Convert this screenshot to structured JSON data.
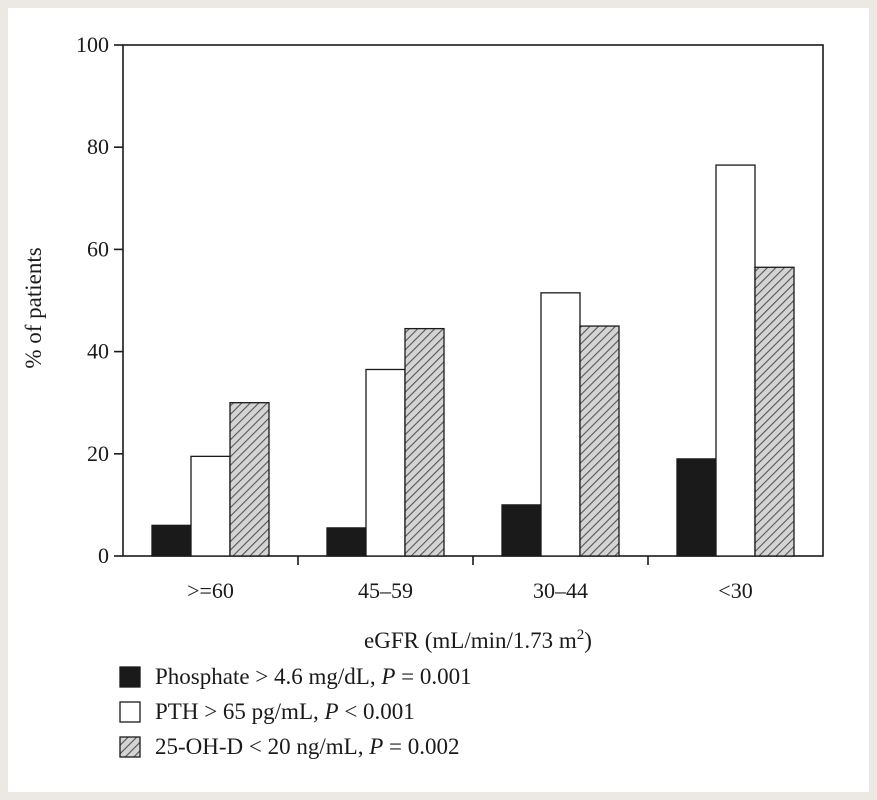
{
  "chart_data": {
    "type": "bar",
    "title": "",
    "xlabel": "eGFR (mL/min/1.73 m",
    "xlabel_superscript": "2",
    "xlabel_close": ")",
    "ylabel": "% of patients",
    "ylim": [
      0,
      100
    ],
    "yticks": [
      "0",
      "20",
      "40",
      "60",
      "80",
      "100"
    ],
    "categories": [
      ">=60",
      "45–59",
      "30–44",
      "<30"
    ],
    "grid": false,
    "legend_position": "bottom-left",
    "series": [
      {
        "name": "Phosphate > 4.6 mg/dL, ",
        "p_label": "P",
        "p_text": " = 0.001",
        "fill": "#1a1a1a",
        "pattern": "solid",
        "values": [
          6,
          5.5,
          10,
          19
        ]
      },
      {
        "name": "PTH > 65 pg/mL, ",
        "p_label": "P",
        "p_text": " < 0.001",
        "fill": "#ffffff",
        "pattern": "solid",
        "values": [
          19.5,
          36.5,
          51.5,
          76.5
        ]
      },
      {
        "name": "25-OH-D < 20 ng/mL, ",
        "p_label": "P",
        "p_text": " = 0.002",
        "fill": "#bdbdbd",
        "pattern": "hatch",
        "values": [
          30,
          44.5,
          45,
          56.5
        ]
      }
    ]
  }
}
